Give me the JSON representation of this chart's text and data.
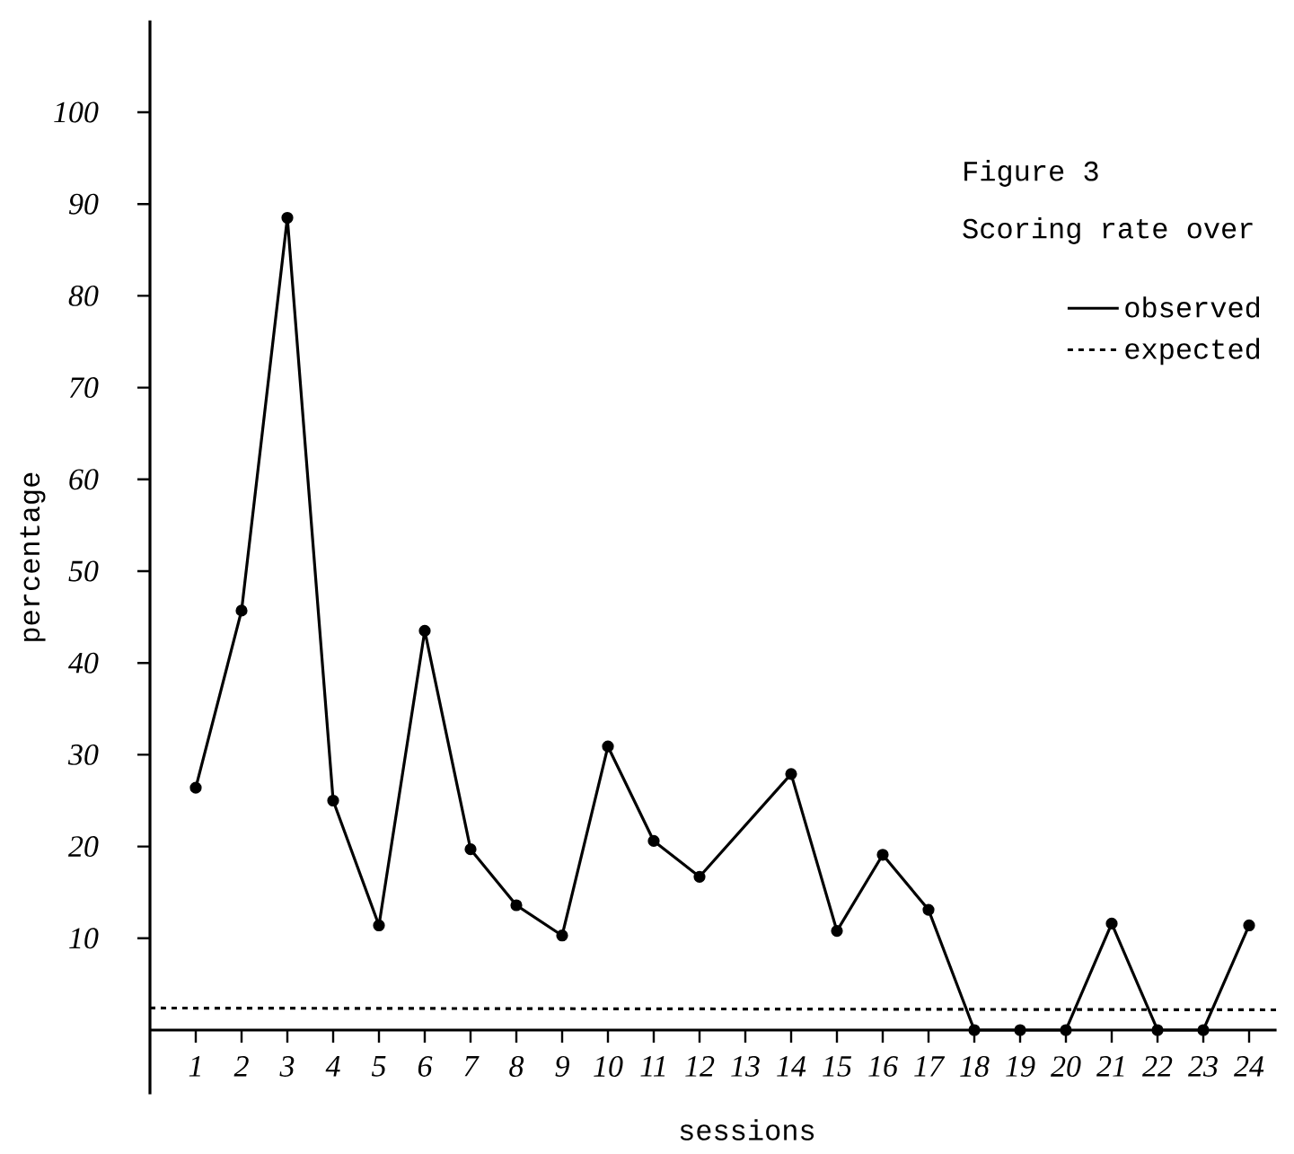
{
  "chart_data": {
    "type": "line",
    "title": "Figure 3",
    "subtitle": "Scoring rate over",
    "xlabel": "sessions",
    "ylabel": "percentage",
    "xlim": [
      0,
      24.6
    ],
    "ylim": [
      -7,
      110
    ],
    "xticks": [
      1,
      2,
      3,
      4,
      5,
      6,
      7,
      8,
      9,
      10,
      11,
      12,
      13,
      14,
      15,
      16,
      17,
      18,
      19,
      20,
      21,
      22,
      23,
      24
    ],
    "yticks": [
      10,
      20,
      30,
      40,
      50,
      60,
      70,
      80,
      90,
      100
    ],
    "legend": "top right",
    "series": [
      {
        "name": "observed",
        "color": "#000000",
        "marker": "circle",
        "line_style": "solid",
        "x": [
          1,
          2,
          3,
          4,
          5,
          6,
          7,
          8,
          9,
          10,
          11,
          12,
          14,
          15,
          16,
          17,
          18,
          19,
          20,
          21,
          22,
          23,
          24
        ],
        "values": [
          26.4,
          45.7,
          88.5,
          25,
          11.4,
          43.5,
          19.7,
          13.6,
          10.3,
          30.9,
          20.6,
          16.7,
          27.9,
          10.8,
          19.1,
          13.1,
          0,
          0,
          0,
          11.6,
          0,
          0,
          11.4
        ]
      },
      {
        "name": "expected",
        "color": "#000000",
        "marker": "none",
        "line_style": "dashed",
        "x": [
          0,
          24.6
        ],
        "values": [
          2.4,
          2.2
        ]
      }
    ]
  }
}
